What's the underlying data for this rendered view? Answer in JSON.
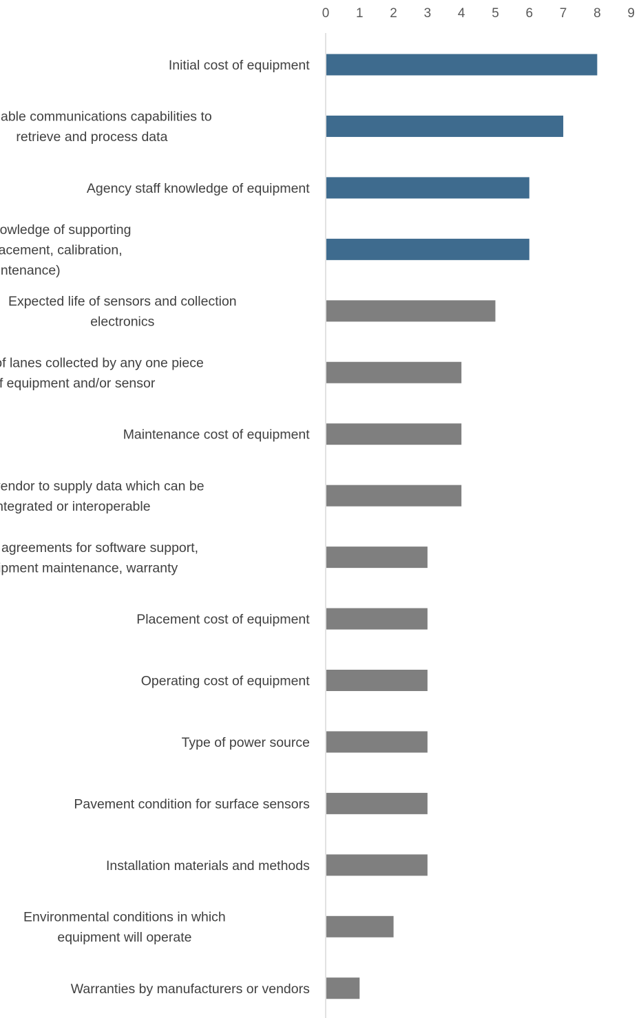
{
  "chart_data": {
    "type": "bar",
    "orientation": "horizontal",
    "title": "",
    "xlabel": "",
    "ylabel": "",
    "xlim": [
      0,
      9
    ],
    "x_ticks": [
      0,
      1,
      2,
      3,
      4,
      5,
      6,
      7,
      8,
      9
    ],
    "x_axis_position": "top",
    "grid": false,
    "legend": "none",
    "highlight_color": "#3e6b8e",
    "base_color": "#7f7f7f",
    "categories": [
      [
        "Initial cost of equipment"
      ],
      [
        "Available communications capabilities to",
        "retrieve and process data"
      ],
      [
        "Agency staff knowledge of equipment"
      ],
      [
        "Agency staff knowledge of supporting",
        "equipment (placement, calibration,",
        "maintenance)"
      ],
      [
        "Expected life of sensors and collection",
        "electronics"
      ],
      [
        "Number of lanes collected by any one piece",
        "of equipment and/or sensor"
      ],
      [
        "Maintenance cost of equipment"
      ],
      [
        "Ability of vendor to supply data which can be",
        "integrated or interoperable"
      ],
      [
        "Vendor agreements for software support,",
        "equipment maintenance, warranty"
      ],
      [
        "Placement cost of equipment"
      ],
      [
        "Operating cost of equipment"
      ],
      [
        "Type of power source"
      ],
      [
        "Pavement condition for surface sensors"
      ],
      [
        "Installation materials and methods"
      ],
      [
        "Environmental conditions in which",
        "equipment will operate"
      ],
      [
        "Warranties by manufacturers or vendors"
      ]
    ],
    "values": [
      8,
      7,
      6,
      6,
      5,
      4,
      4,
      4,
      3,
      3,
      3,
      3,
      3,
      3,
      2,
      1
    ],
    "highlighted": [
      true,
      true,
      true,
      true,
      false,
      false,
      false,
      false,
      false,
      false,
      false,
      false,
      false,
      false,
      false,
      false
    ]
  }
}
